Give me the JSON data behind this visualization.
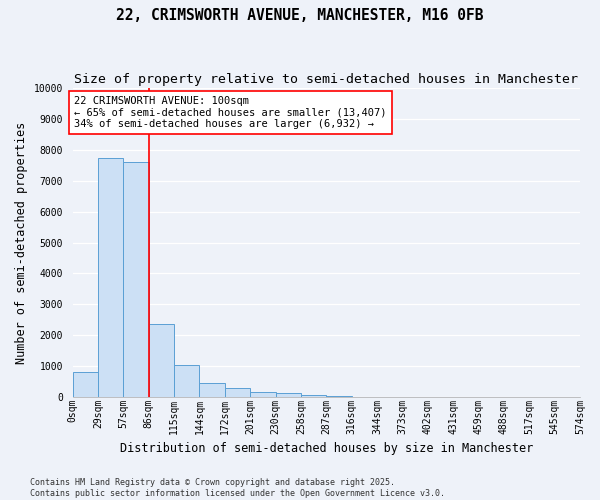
{
  "title": "22, CRIMSWORTH AVENUE, MANCHESTER, M16 0FB",
  "subtitle": "Size of property relative to semi-detached houses in Manchester",
  "xlabel": "Distribution of semi-detached houses by size in Manchester",
  "ylabel": "Number of semi-detached properties",
  "bar_values": [
    800,
    7750,
    7600,
    2350,
    1030,
    440,
    280,
    165,
    120,
    65,
    30,
    10,
    5,
    3,
    2,
    1,
    1,
    0,
    0,
    0
  ],
  "bin_labels": [
    "0sqm",
    "29sqm",
    "57sqm",
    "86sqm",
    "115sqm",
    "144sqm",
    "172sqm",
    "201sqm",
    "230sqm",
    "258sqm",
    "287sqm",
    "316sqm",
    "344sqm",
    "373sqm",
    "402sqm",
    "431sqm",
    "459sqm",
    "488sqm",
    "517sqm",
    "545sqm",
    "574sqm"
  ],
  "bar_color": "#cce0f5",
  "bar_edge_color": "#5a9fd4",
  "property_line_x": 3,
  "property_line_color": "red",
  "annotation_line1": "22 CRIMSWORTH AVENUE: 100sqm",
  "annotation_line2": "← 65% of semi-detached houses are smaller (13,407)",
  "annotation_line3": "34% of semi-detached houses are larger (6,932) →",
  "annotation_box_color": "white",
  "annotation_box_edge_color": "red",
  "ylim": [
    0,
    10000
  ],
  "yticks": [
    0,
    1000,
    2000,
    3000,
    4000,
    5000,
    6000,
    7000,
    8000,
    9000,
    10000
  ],
  "bg_color": "#eef2f9",
  "grid_color": "white",
  "footer_text": "Contains HM Land Registry data © Crown copyright and database right 2025.\nContains public sector information licensed under the Open Government Licence v3.0.",
  "title_fontsize": 10.5,
  "subtitle_fontsize": 9.5,
  "axis_label_fontsize": 8.5,
  "tick_fontsize": 7,
  "annotation_fontsize": 7.5,
  "footer_fontsize": 6
}
